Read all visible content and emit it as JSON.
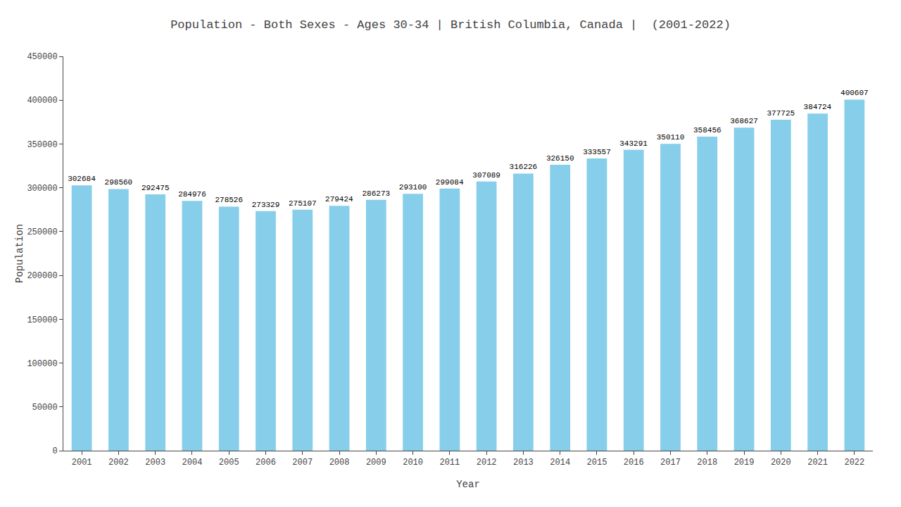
{
  "chart_data": {
    "type": "bar",
    "title": "Population - Both Sexes - Ages 30-34 | British Columbia, Canada |  (2001-2022)",
    "xlabel": "Year",
    "ylabel": "Population",
    "categories": [
      "2001",
      "2002",
      "2003",
      "2004",
      "2005",
      "2006",
      "2007",
      "2008",
      "2009",
      "2010",
      "2011",
      "2012",
      "2013",
      "2014",
      "2015",
      "2016",
      "2017",
      "2018",
      "2019",
      "2020",
      "2021",
      "2022"
    ],
    "values": [
      302684,
      298560,
      292475,
      284976,
      278526,
      273329,
      275107,
      279424,
      286273,
      293100,
      299084,
      307089,
      316226,
      326150,
      333557,
      343291,
      350110,
      358456,
      368627,
      377725,
      384724,
      400607
    ],
    "color": "#87CEEB",
    "ylim": [
      0,
      450000
    ],
    "yticks": [
      0,
      50000,
      100000,
      150000,
      200000,
      250000,
      300000,
      350000,
      400000,
      450000
    ],
    "grid": false,
    "data_labels": true
  }
}
